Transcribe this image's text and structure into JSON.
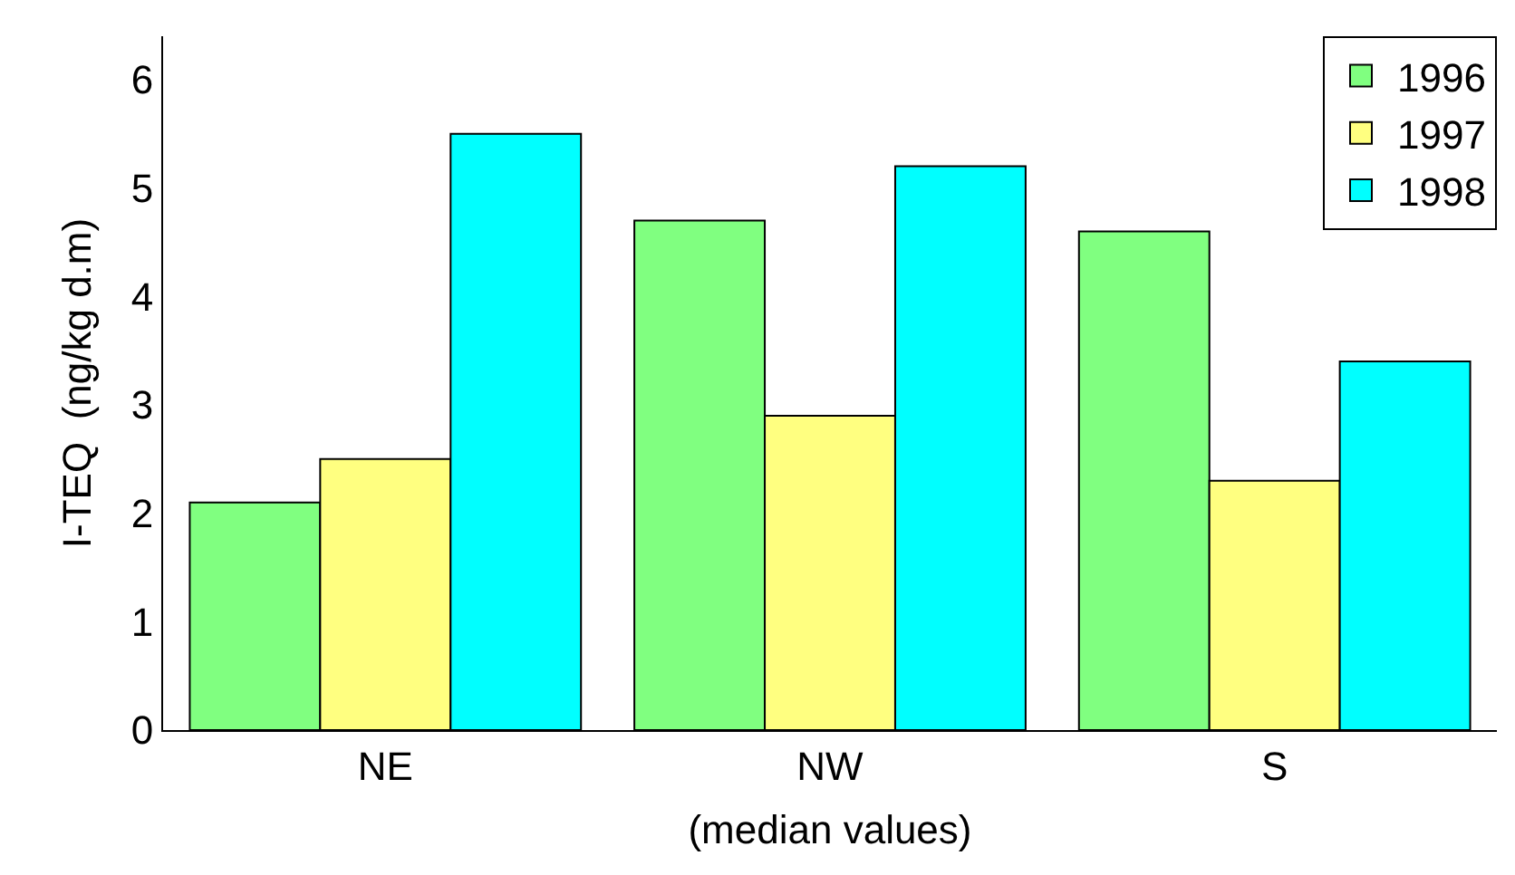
{
  "chart_data": {
    "type": "bar",
    "xlabel": "(median values)",
    "ylabel": "I-TEQ  (ng/kg d.m)",
    "categories": [
      "NE",
      "NW",
      "S"
    ],
    "series": [
      {
        "name": "1996",
        "color": "#80ff80",
        "values": [
          2.1,
          4.7,
          4.6
        ]
      },
      {
        "name": "1997",
        "color": "#ffff80",
        "values": [
          2.5,
          2.9,
          2.3
        ]
      },
      {
        "name": "1998",
        "color": "#00ffff",
        "values": [
          5.5,
          5.2,
          3.4
        ]
      }
    ],
    "ylim": [
      0,
      6.4
    ],
    "yticks": [
      0,
      1,
      2,
      3,
      4,
      5,
      6
    ],
    "grid": false,
    "legend": "top right"
  }
}
